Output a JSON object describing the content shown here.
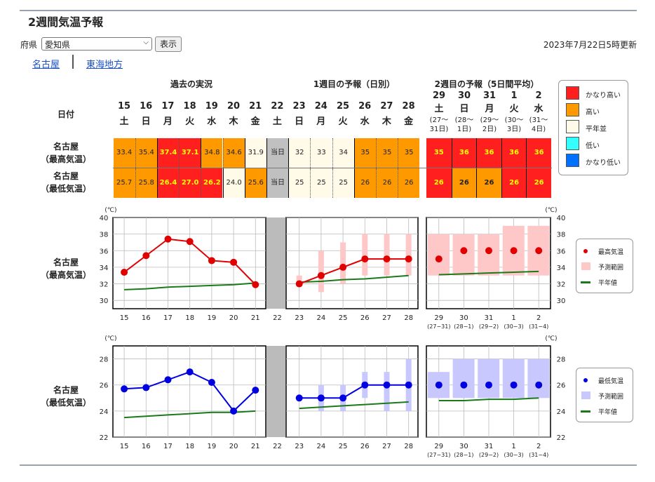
{
  "title": "2週間気温予報",
  "pref": {
    "label": "府県",
    "selected": "愛知県",
    "button": "表示"
  },
  "updated": "2023年7月22日5時更新",
  "links": [
    "名古屋",
    "東海地方"
  ],
  "sections": {
    "past": "過去の実況",
    "week1": "1週目の予報（日別）",
    "week2": "2週目の予報（5日間平均）"
  },
  "row_labels": {
    "date": "日付",
    "max": [
      "名古屋",
      "（最高気温）"
    ],
    "min": [
      "名古屋",
      "（最低気温）"
    ]
  },
  "days": [
    {
      "d": "15",
      "w": "土"
    },
    {
      "d": "16",
      "w": "日"
    },
    {
      "d": "17",
      "w": "月"
    },
    {
      "d": "18",
      "w": "火"
    },
    {
      "d": "19",
      "w": "水"
    },
    {
      "d": "20",
      "w": "木"
    },
    {
      "d": "21",
      "w": "金"
    },
    {
      "d": "22",
      "w": "土"
    },
    {
      "d": "23",
      "w": "日"
    },
    {
      "d": "24",
      "w": "月"
    },
    {
      "d": "25",
      "w": "火"
    },
    {
      "d": "26",
      "w": "水"
    },
    {
      "d": "27",
      "w": "木"
    },
    {
      "d": "28",
      "w": "金"
    }
  ],
  "week2_days": [
    {
      "d": "29",
      "w": "土",
      "r1": "(27〜",
      "r2": "31日)",
      "tick": "29",
      "range": "(27−31)"
    },
    {
      "d": "30",
      "w": "日",
      "r1": "(28〜",
      "r2": "1日)",
      "tick": "30",
      "range": "(28−1)"
    },
    {
      "d": "31",
      "w": "月",
      "r1": "(29〜",
      "r2": "2日)",
      "tick": "31",
      "range": "(29−2)"
    },
    {
      "d": "1",
      "w": "火",
      "r1": "(30〜",
      "r2": "3日)",
      "tick": "1",
      "range": "(30−3)"
    },
    {
      "d": "2",
      "w": "水",
      "r1": "(31〜",
      "r2": "4日)",
      "tick": "2",
      "range": "(31−4)"
    }
  ],
  "max_values": [
    "33.4",
    "35.4",
    "37.4",
    "37.1",
    "34.8",
    "34.6",
    "31.9",
    "当日",
    "32",
    "33",
    "34",
    "35",
    "35",
    "35"
  ],
  "min_values": [
    "25.7",
    "25.8",
    "26.4",
    "27.0",
    "26.2",
    "24.0",
    "25.6",
    "当日",
    "25",
    "25",
    "25",
    "26",
    "26",
    "26"
  ],
  "max_week2": [
    "35",
    "36",
    "36",
    "36",
    "36"
  ],
  "min_week2": [
    "26",
    "26",
    "26",
    "26",
    "26"
  ],
  "max_classes": [
    "hi",
    "hi",
    "vhi",
    "vhi",
    "hi",
    "hi",
    "norm",
    "today",
    "norm",
    "norm",
    "norm",
    "hi",
    "hi",
    "hi"
  ],
  "min_classes": [
    "hi",
    "hi",
    "vhi",
    "vhi",
    "vhi",
    "norm",
    "hi",
    "today",
    "norm",
    "norm",
    "norm",
    "hi",
    "hi",
    "hi"
  ],
  "max_w2_classes": [
    "vhi",
    "vhi",
    "vhi",
    "vhi",
    "vhi"
  ],
  "min_w2_classes": [
    "vhi",
    "hi",
    "hi",
    "vhi",
    "vhi"
  ],
  "colors": {
    "vhi": "#ff1f1f",
    "hi": "#ff9900",
    "norm": "#fffbe8",
    "low": "#33ffff",
    "vlow": "#0070ff",
    "today": "#c0c0c0",
    "vhi_text": "#ffff00"
  },
  "legend": [
    "かなり高い",
    "高い",
    "平年並",
    "低い",
    "かなり低い"
  ],
  "unit": "(℃)",
  "max_legend": [
    "最高気温",
    "予測範囲",
    "平年値"
  ],
  "min_legend": [
    "最低気温",
    "予測範囲",
    "平年値"
  ],
  "chart_data": [
    {
      "type": "line",
      "title": "名古屋（最高気温）",
      "ylabel": "(℃)",
      "ylim": [
        29,
        40
      ],
      "yticks": [
        30,
        32,
        34,
        36,
        38,
        40
      ],
      "x": [
        "15",
        "16",
        "17",
        "18",
        "19",
        "20",
        "21",
        "22",
        "23",
        "24",
        "25",
        "26",
        "27",
        "28",
        "29",
        "30",
        "31",
        "1",
        "2"
      ],
      "series": [
        {
          "name": "最高気温",
          "observed": [
            33.4,
            35.4,
            37.4,
            37.1,
            34.8,
            34.6,
            31.9
          ],
          "forecast_daily": [
            32,
            33,
            34,
            35,
            35,
            35
          ],
          "forecast_week2": [
            35,
            36,
            36,
            36,
            36
          ]
        },
        {
          "name": "予測範囲",
          "daily_ranges": [
            [
              32,
              33
            ],
            [
              31,
              36
            ],
            [
              32,
              37
            ],
            [
              33,
              38
            ],
            [
              33,
              38
            ],
            [
              33,
              38
            ]
          ],
          "week2_ranges": [
            [
              33,
              38
            ],
            [
              33,
              38
            ],
            [
              33,
              38
            ],
            [
              33,
              39
            ],
            [
              33,
              39
            ]
          ]
        },
        {
          "name": "平年値",
          "past": [
            31.3,
            31.4,
            31.6,
            31.7,
            31.8,
            31.9,
            32.1
          ],
          "daily": [
            32.2,
            32.3,
            32.5,
            32.6,
            32.8,
            33.0
          ],
          "week2": [
            33.1,
            33.2,
            33.3,
            33.4,
            33.5
          ]
        }
      ]
    },
    {
      "type": "line",
      "title": "名古屋（最低気温）",
      "ylabel": "(℃)",
      "ylim": [
        22,
        29
      ],
      "yticks": [
        22,
        24,
        26,
        28
      ],
      "x": [
        "15",
        "16",
        "17",
        "18",
        "19",
        "20",
        "21",
        "22",
        "23",
        "24",
        "25",
        "26",
        "27",
        "28",
        "29",
        "30",
        "31",
        "1",
        "2"
      ],
      "series": [
        {
          "name": "最低気温",
          "observed": [
            25.7,
            25.8,
            26.4,
            27.0,
            26.2,
            24.0,
            25.6
          ],
          "forecast_daily": [
            25,
            25,
            25,
            26,
            26,
            26
          ],
          "forecast_week2": [
            26,
            26,
            26,
            26,
            26
          ]
        },
        {
          "name": "予測範囲",
          "daily_ranges": [
            [
              25,
              25
            ],
            [
              24,
              26
            ],
            [
              24,
              26
            ],
            [
              25,
              27
            ],
            [
              24,
              27
            ],
            [
              24,
              28
            ]
          ],
          "week2_ranges": [
            [
              25,
              27
            ],
            [
              25,
              28
            ],
            [
              25,
              28
            ],
            [
              25,
              28
            ],
            [
              25,
              28
            ]
          ]
        },
        {
          "name": "平年値",
          "past": [
            23.5,
            23.6,
            23.7,
            23.8,
            23.9,
            23.9,
            24.0
          ],
          "daily": [
            24.2,
            24.3,
            24.4,
            24.5,
            24.6,
            24.7
          ],
          "week2": [
            24.8,
            24.8,
            24.9,
            24.9,
            25.0
          ]
        }
      ]
    }
  ]
}
